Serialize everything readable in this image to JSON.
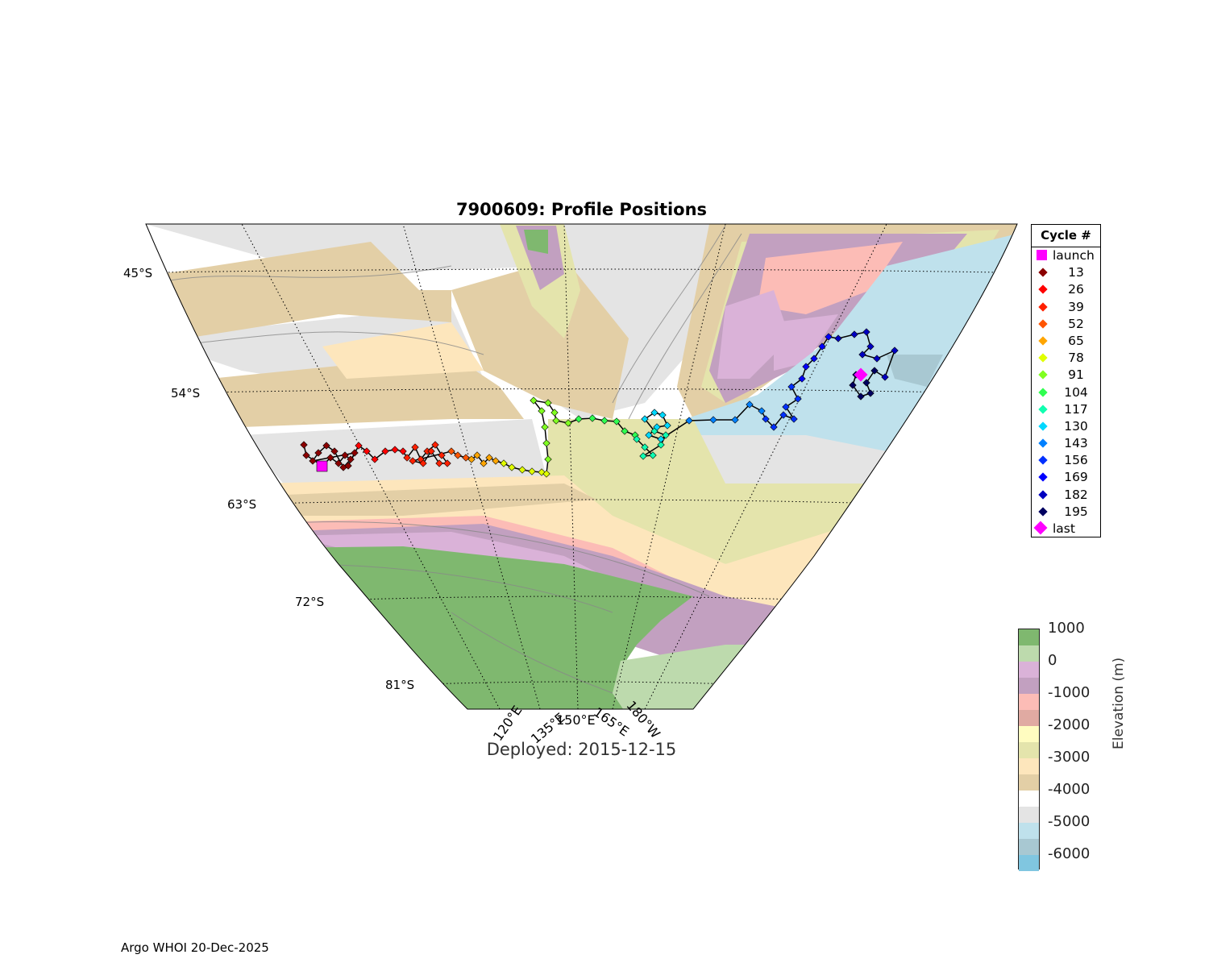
{
  "title": "7900609: Profile Positions",
  "subtitle": "Deployed: 2015-12-15",
  "footer": "Argo WHOI 20-Dec-2025",
  "map": {
    "lat_labels": [
      "45°S",
      "54°S",
      "63°S",
      "72°S",
      "81°S"
    ],
    "lon_labels": [
      "120°E",
      "135°E",
      "150°E",
      "165°E",
      "180°W"
    ]
  },
  "legend": {
    "title": "Cycle #",
    "items": [
      {
        "label": "launch",
        "color": "#ff00ff",
        "marker": "square"
      },
      {
        "label": "13",
        "color": "#8b0000",
        "marker": "diamond"
      },
      {
        "label": "26",
        "color": "#ff0000",
        "marker": "diamond"
      },
      {
        "label": "39",
        "color": "#ff2000",
        "marker": "diamond"
      },
      {
        "label": "52",
        "color": "#ff5500",
        "marker": "diamond"
      },
      {
        "label": "65",
        "color": "#ffa500",
        "marker": "diamond"
      },
      {
        "label": "78",
        "color": "#e0ff00",
        "marker": "diamond"
      },
      {
        "label": "91",
        "color": "#80ff20",
        "marker": "diamond"
      },
      {
        "label": "104",
        "color": "#30ff50",
        "marker": "diamond"
      },
      {
        "label": "117",
        "color": "#10ffb0",
        "marker": "diamond"
      },
      {
        "label": "130",
        "color": "#00d8ff",
        "marker": "diamond"
      },
      {
        "label": "143",
        "color": "#0080ff",
        "marker": "diamond"
      },
      {
        "label": "156",
        "color": "#0030ff",
        "marker": "diamond"
      },
      {
        "label": "169",
        "color": "#0000ff",
        "marker": "diamond"
      },
      {
        "label": "182",
        "color": "#0000c0",
        "marker": "diamond"
      },
      {
        "label": "195",
        "color": "#000060",
        "marker": "diamond"
      },
      {
        "label": "last",
        "color": "#ff00ff",
        "marker": "big-diamond"
      }
    ]
  },
  "colorbar": {
    "label": "Elevation (m)",
    "ticks": [
      "1000",
      "0",
      "-1000",
      "-2000",
      "-3000",
      "-4000",
      "-5000",
      "-6000"
    ],
    "colors": [
      "#7fb86f",
      "#bddaad",
      "#dab2d8",
      "#c2a0c0",
      "#fcbcb6",
      "#e0aaa2",
      "#fffcc0",
      "#e4e4ac",
      "#fde6bc",
      "#e3cfa6",
      "#ffffff",
      "#e4e4e4",
      "#bfe1ec",
      "#a8c8d2",
      "#80c6e0"
    ]
  }
}
